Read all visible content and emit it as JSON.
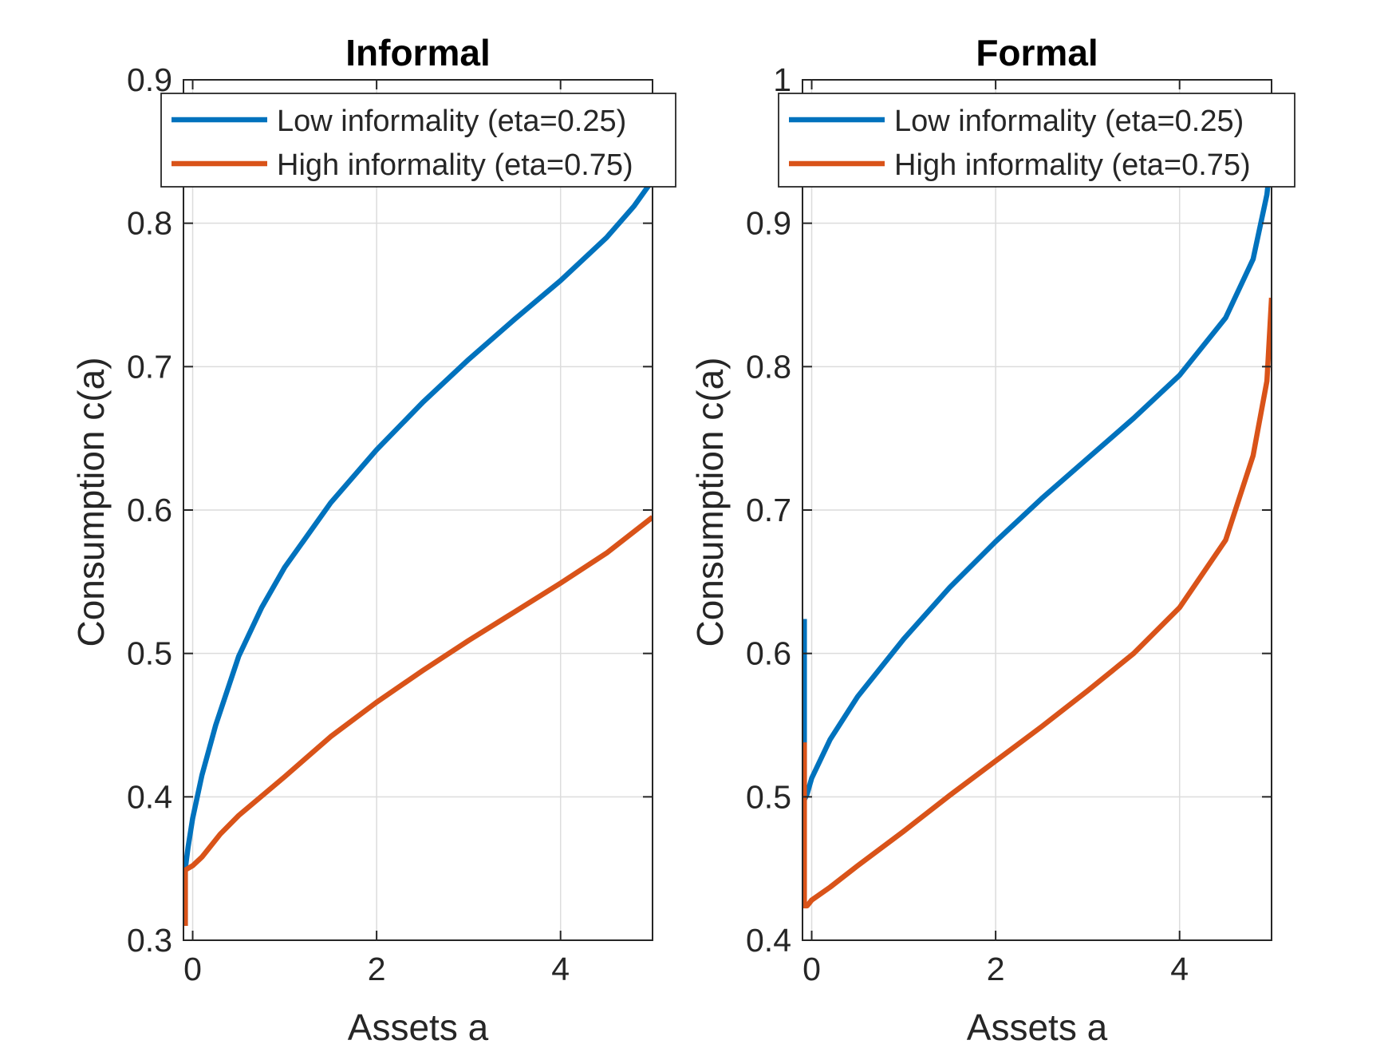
{
  "chart_data": [
    {
      "type": "line",
      "title": "Informal",
      "xlabel": "Assets a",
      "ylabel": "Consumption c(a)",
      "xlim": [
        -0.1,
        5
      ],
      "ylim": [
        0.3,
        0.9
      ],
      "xticks": [
        0,
        2,
        4
      ],
      "xtick_labels": [
        "0",
        "2",
        "4"
      ],
      "yticks": [
        0.3,
        0.4,
        0.5,
        0.6,
        0.7,
        0.8,
        0.9
      ],
      "ytick_labels": [
        "0.3",
        "0.4",
        "0.5",
        "0.6",
        "0.7",
        "0.8",
        "0.9"
      ],
      "grid": true,
      "legend_position": "top",
      "series": [
        {
          "name": "Low informality (eta=0.25)",
          "color": "#0072BD",
          "x": [
            -0.08,
            -0.08,
            -0.05,
            0,
            0.1,
            0.25,
            0.5,
            0.75,
            1,
            1.5,
            2,
            2.5,
            3,
            3.5,
            4,
            4.5,
            4.8,
            5
          ],
          "y": [
            0.31,
            0.35,
            0.365,
            0.385,
            0.415,
            0.45,
            0.498,
            0.532,
            0.56,
            0.605,
            0.642,
            0.675,
            0.705,
            0.733,
            0.76,
            0.79,
            0.812,
            0.83
          ]
        },
        {
          "name": "High informality (eta=0.75)",
          "color": "#D95319",
          "x": [
            -0.08,
            -0.08,
            0,
            0.1,
            0.3,
            0.5,
            1,
            1.5,
            2,
            2.5,
            3,
            3.5,
            4,
            4.5,
            5
          ],
          "y": [
            0.31,
            0.349,
            0.352,
            0.358,
            0.374,
            0.387,
            0.414,
            0.442,
            0.466,
            0.488,
            0.509,
            0.529,
            0.549,
            0.57,
            0.595
          ]
        }
      ]
    },
    {
      "type": "line",
      "title": "Formal",
      "xlabel": "Assets a",
      "ylabel": "Consumption c(a)",
      "xlim": [
        -0.1,
        5
      ],
      "ylim": [
        0.4,
        1
      ],
      "xticks": [
        0,
        2,
        4
      ],
      "xtick_labels": [
        "0",
        "2",
        "4"
      ],
      "yticks": [
        0.4,
        0.5,
        0.6,
        0.7,
        0.8,
        0.9,
        1
      ],
      "ytick_labels": [
        "0.4",
        "0.5",
        "0.6",
        "0.7",
        "0.8",
        "0.9",
        "1"
      ],
      "grid": true,
      "legend_position": "top",
      "series": [
        {
          "name": "Low informality (eta=0.25)",
          "color": "#0072BD",
          "x": [
            -0.08,
            -0.08,
            -0.05,
            0,
            0.2,
            0.5,
            1,
            1.5,
            2,
            2.5,
            3,
            3.5,
            4,
            4.5,
            4.8,
            4.95,
            5
          ],
          "y": [
            0.624,
            0.498,
            0.502,
            0.513,
            0.54,
            0.57,
            0.61,
            0.646,
            0.678,
            0.708,
            0.736,
            0.764,
            0.794,
            0.834,
            0.875,
            0.92,
            0.95
          ]
        },
        {
          "name": "High informality (eta=0.75)",
          "color": "#D95319",
          "x": [
            -0.08,
            -0.08,
            -0.05,
            0,
            0.2,
            0.5,
            1,
            1.5,
            2,
            2.5,
            3,
            3.5,
            4,
            4.5,
            4.8,
            4.95,
            5
          ],
          "y": [
            0.538,
            0.424,
            0.424,
            0.428,
            0.437,
            0.452,
            0.476,
            0.501,
            0.525,
            0.549,
            0.574,
            0.6,
            0.632,
            0.679,
            0.738,
            0.79,
            0.848
          ]
        }
      ]
    }
  ]
}
